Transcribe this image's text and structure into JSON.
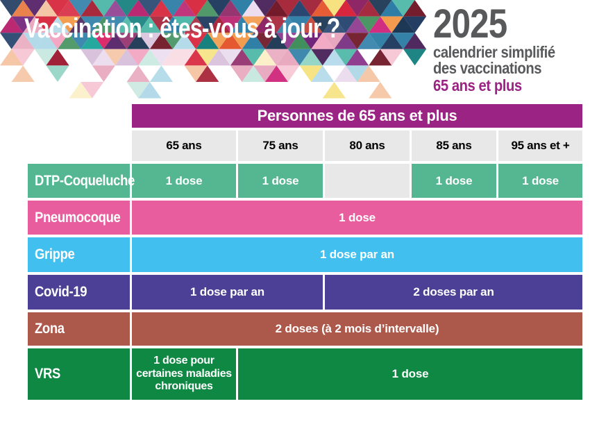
{
  "banner": {
    "title": "Vaccination : êtes-vous à jour ?",
    "year": "2025",
    "subtitle_line1": "calendrier simplifié",
    "subtitle_line2": "des vaccinations",
    "audience": "65 ans et plus",
    "mosaic_palette": {
      "strong": [
        "#9E1B32",
        "#C0392B",
        "#D7263D",
        "#E4572E",
        "#6E1423",
        "#B81D6C",
        "#D12A7E",
        "#8E2464",
        "#6D2077",
        "#4A235A",
        "#1F3A5F",
        "#16324F",
        "#0E7C7B",
        "#17A398",
        "#4FB8A8",
        "#2D7DA6",
        "#E8743B",
        "#F2994A",
        "#3E8E5A",
        "#8E3B8E",
        "#A62639",
        "#5C2A6E",
        "#D81B60",
        "#27456F"
      ],
      "pale": [
        "#F2A0BE",
        "#F7C6D4",
        "#FADBE4",
        "#93D5C6",
        "#C8E8DF",
        "#F6E27F",
        "#FBF0C8",
        "#D9C2DC",
        "#EBDDEE",
        "#AFD8E8",
        "#F5C6A5",
        "#E8A7BE"
      ]
    }
  },
  "table": {
    "title": "Personnes de 65 ans et plus",
    "age_columns": [
      "65 ans",
      "75 ans",
      "80 ans",
      "85 ans",
      "95 ans et +"
    ],
    "rows": [
      {
        "name": "DTP-Coqueluche",
        "color": "#54B792",
        "cells": {
          "c65": "1 dose",
          "c75": "1 dose",
          "c80": "",
          "c85": "1 dose",
          "c95": "1 dose"
        }
      },
      {
        "name": "Pneumocoque",
        "color": "#E85D9D",
        "all": "1 dose"
      },
      {
        "name": "Grippe",
        "color": "#41BFEE",
        "all": "1 dose par an"
      },
      {
        "name": "Covid-19",
        "color": "#4B4095",
        "left": "1 dose par an",
        "right": "2 doses par an"
      },
      {
        "name": "Zona",
        "color": "#AC594C",
        "all": "2 doses (à 2 mois d’intervalle)"
      },
      {
        "name": "VRS",
        "color": "#0E8843",
        "first": "1 dose pour certaines maladies chroniques",
        "rest": "1 dose"
      }
    ]
  },
  "colors": {
    "table_title_bg": "#9B2383",
    "age_header_bg": "#E9E8E8",
    "empty_cell_bg": "#E9E8E8",
    "heading_gray": "#58595B",
    "audience_magenta": "#9B2383"
  }
}
